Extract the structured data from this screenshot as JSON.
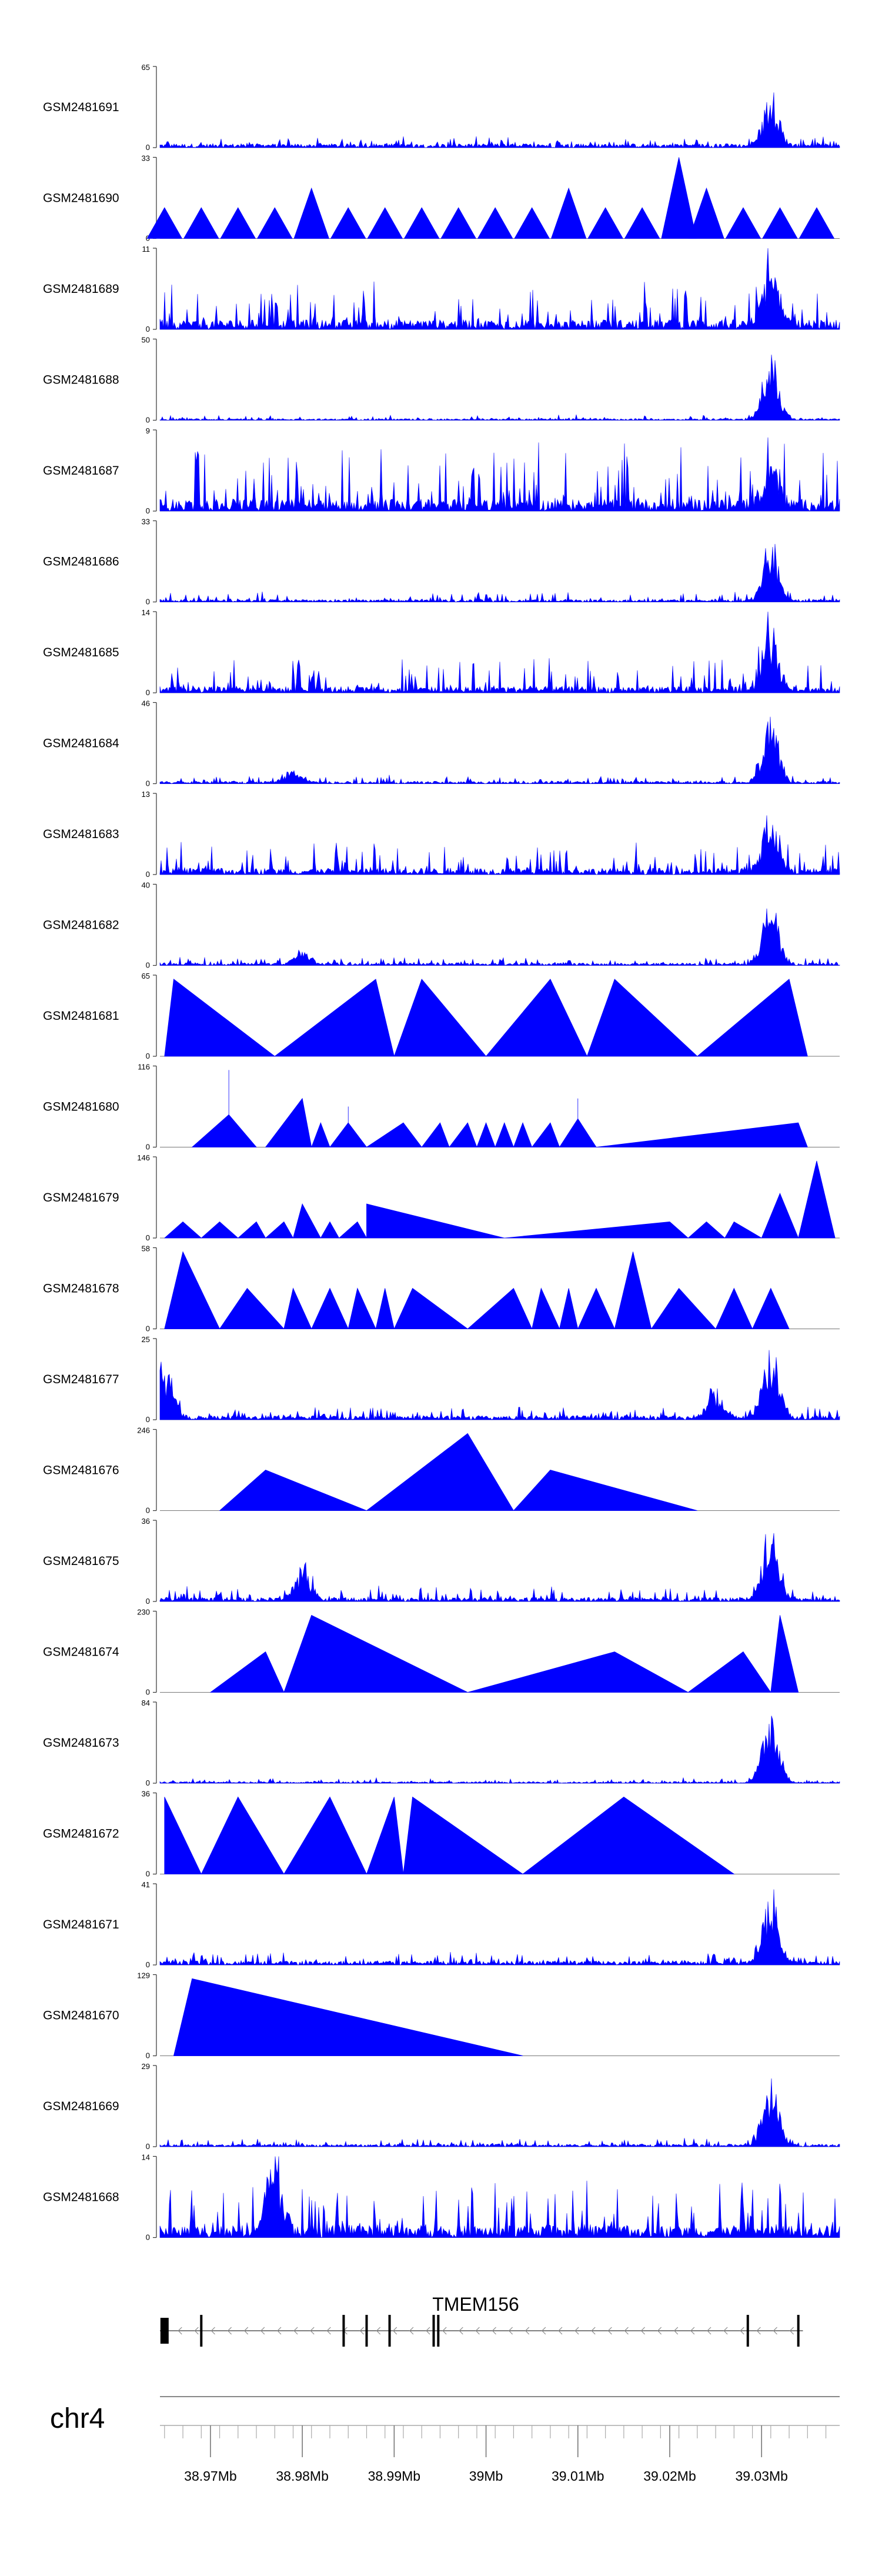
{
  "chart_data": {
    "type": "area",
    "title": "",
    "xlabel": "chr4",
    "xlim_mb": [
      38.9645,
      39.0385
    ],
    "x_ticks_mb": [
      38.97,
      38.98,
      38.99,
      39.0,
      39.01,
      39.02,
      39.03
    ],
    "x_tick_labels": [
      "38.97Mb",
      "38.98Mb",
      "38.99Mb",
      "39Mb",
      "39.01Mb",
      "39.02Mb",
      "39.03Mb"
    ],
    "gene": {
      "name": "TMEM156",
      "strand": "-",
      "start_mb": 38.9645,
      "end_mb": 39.0345,
      "exons_mb": [
        38.965,
        38.969,
        38.9845,
        38.987,
        38.9895,
        38.9943,
        38.9948,
        39.0285,
        39.034
      ]
    },
    "tracks": [
      {
        "name": "GSM2481691",
        "ymax": 65,
        "style": "noise",
        "base": 0.05,
        "var": 0.1,
        "peaks": [
          [
            39.031,
            0.7
          ]
        ]
      },
      {
        "name": "GSM2481690",
        "ymax": 33,
        "style": "spiky",
        "spikes": [
          [
            38.965,
            0.38
          ],
          [
            38.969,
            0.38
          ],
          [
            38.973,
            0.38
          ],
          [
            38.977,
            0.38
          ],
          [
            38.981,
            0.62
          ],
          [
            38.985,
            0.38
          ],
          [
            38.989,
            0.38
          ],
          [
            38.993,
            0.38
          ],
          [
            38.997,
            0.38
          ],
          [
            39.001,
            0.38
          ],
          [
            39.005,
            0.38
          ],
          [
            39.009,
            0.62
          ],
          [
            39.013,
            0.38
          ],
          [
            39.017,
            0.38
          ],
          [
            39.021,
            1.0
          ],
          [
            39.024,
            0.62
          ],
          [
            39.028,
            0.38
          ],
          [
            39.032,
            0.38
          ],
          [
            39.036,
            0.38
          ]
        ]
      },
      {
        "name": "GSM2481689",
        "ymax": 11,
        "style": "noise",
        "base": 0.12,
        "var": 0.5,
        "peaks": [
          [
            39.031,
            0.8
          ]
        ]
      },
      {
        "name": "GSM2481688",
        "ymax": 50,
        "style": "noise",
        "base": 0.02,
        "var": 0.05,
        "peaks": [
          [
            39.031,
            0.9
          ]
        ]
      },
      {
        "name": "GSM2481687",
        "ymax": 9,
        "style": "noise",
        "base": 0.15,
        "var": 0.7,
        "peaks": [
          [
            39.031,
            0.6
          ]
        ]
      },
      {
        "name": "GSM2481686",
        "ymax": 33,
        "style": "noise",
        "base": 0.03,
        "var": 0.1,
        "peaks": [
          [
            39.031,
            0.85
          ]
        ]
      },
      {
        "name": "GSM2481685",
        "ymax": 14,
        "style": "noise",
        "base": 0.08,
        "var": 0.4,
        "peaks": [
          [
            39.031,
            0.8
          ]
        ]
      },
      {
        "name": "GSM2481684",
        "ymax": 46,
        "style": "noise",
        "base": 0.03,
        "var": 0.08,
        "peaks": [
          [
            38.979,
            0.2
          ],
          [
            39.031,
            0.9
          ]
        ]
      },
      {
        "name": "GSM2481683",
        "ymax": 13,
        "style": "noise",
        "base": 0.08,
        "var": 0.35,
        "peaks": [
          [
            39.031,
            0.8
          ]
        ]
      },
      {
        "name": "GSM2481682",
        "ymax": 40,
        "style": "noise",
        "base": 0.03,
        "var": 0.08,
        "peaks": [
          [
            38.98,
            0.2
          ],
          [
            39.031,
            0.85
          ]
        ]
      },
      {
        "name": "GSM2481681",
        "ymax": 65,
        "style": "tri",
        "tris": [
          [
            38.965,
            38.966,
            38.977,
            0.95
          ],
          [
            38.977,
            38.988,
            38.99,
            0.95
          ],
          [
            38.99,
            38.993,
            39.0,
            0.95
          ],
          [
            39.0,
            39.007,
            39.011,
            0.95
          ],
          [
            39.011,
            39.014,
            39.023,
            0.95
          ],
          [
            39.023,
            39.033,
            39.035,
            0.95
          ]
        ]
      },
      {
        "name": "GSM2481680",
        "ymax": 116,
        "style": "tri",
        "tris": [
          [
            38.968,
            38.972,
            38.975,
            0.4
          ],
          [
            38.972,
            38.972,
            38.972,
            0.95
          ],
          [
            38.976,
            38.98,
            38.981,
            0.6
          ],
          [
            38.981,
            38.982,
            38.983,
            0.3
          ],
          [
            38.983,
            38.985,
            38.987,
            0.3
          ],
          [
            38.985,
            38.985,
            38.985,
            0.5
          ],
          [
            38.987,
            38.991,
            38.993,
            0.3
          ],
          [
            38.993,
            38.995,
            38.996,
            0.3
          ],
          [
            38.996,
            38.998,
            38.999,
            0.3
          ],
          [
            38.999,
            39.0,
            39.001,
            0.3
          ],
          [
            39.001,
            39.002,
            39.003,
            0.3
          ],
          [
            39.003,
            39.004,
            39.005,
            0.3
          ],
          [
            39.005,
            39.007,
            39.008,
            0.3
          ],
          [
            39.008,
            39.01,
            39.012,
            0.35
          ],
          [
            39.01,
            39.01,
            39.01,
            0.6
          ],
          [
            39.012,
            39.034,
            39.035,
            0.3
          ]
        ]
      },
      {
        "name": "GSM2481679",
        "ymax": 146,
        "style": "tri",
        "tris": [
          [
            38.965,
            38.967,
            38.969,
            0.2
          ],
          [
            38.969,
            38.971,
            38.973,
            0.2
          ],
          [
            38.973,
            38.975,
            38.976,
            0.2
          ],
          [
            38.976,
            38.978,
            38.979,
            0.2
          ],
          [
            38.979,
            38.98,
            38.982,
            0.42
          ],
          [
            38.982,
            38.983,
            38.984,
            0.2
          ],
          [
            38.984,
            38.986,
            38.987,
            0.2
          ],
          [
            38.987,
            38.987,
            39.002,
            0.42
          ],
          [
            39.002,
            39.02,
            39.022,
            0.2
          ],
          [
            39.022,
            39.024,
            39.026,
            0.2
          ],
          [
            39.026,
            39.027,
            39.03,
            0.2
          ],
          [
            39.03,
            39.032,
            39.034,
            0.55
          ],
          [
            39.034,
            39.036,
            39.038,
            0.95
          ]
        ]
      },
      {
        "name": "GSM2481678",
        "ymax": 58,
        "style": "tri",
        "tris": [
          [
            38.965,
            38.967,
            38.971,
            0.95
          ],
          [
            38.971,
            38.974,
            38.978,
            0.5
          ],
          [
            38.978,
            38.979,
            38.981,
            0.5
          ],
          [
            38.981,
            38.983,
            38.985,
            0.5
          ],
          [
            38.985,
            38.986,
            38.988,
            0.5
          ],
          [
            38.988,
            38.989,
            38.99,
            0.5
          ],
          [
            38.99,
            38.992,
            38.998,
            0.5
          ],
          [
            38.998,
            39.003,
            39.005,
            0.5
          ],
          [
            39.005,
            39.006,
            39.008,
            0.5
          ],
          [
            39.008,
            39.009,
            39.01,
            0.5
          ],
          [
            39.01,
            39.012,
            39.014,
            0.5
          ],
          [
            39.014,
            39.016,
            39.018,
            0.95
          ],
          [
            39.018,
            39.021,
            39.025,
            0.5
          ],
          [
            39.025,
            39.027,
            39.029,
            0.5
          ],
          [
            39.029,
            39.031,
            39.033,
            0.5
          ]
        ]
      },
      {
        "name": "GSM2481677",
        "ymax": 25,
        "style": "noise",
        "base": 0.05,
        "var": 0.12,
        "peaks": [
          [
            38.965,
            0.75
          ],
          [
            39.025,
            0.35
          ],
          [
            39.031,
            0.95
          ]
        ]
      },
      {
        "name": "GSM2481676",
        "ymax": 246,
        "style": "tri",
        "tris": [
          [
            38.971,
            38.976,
            38.987,
            0.5
          ],
          [
            38.987,
            38.998,
            39.003,
            0.95
          ],
          [
            39.003,
            39.007,
            39.023,
            0.5
          ]
        ]
      },
      {
        "name": "GSM2481675",
        "ymax": 36,
        "style": "noise",
        "base": 0.05,
        "var": 0.15,
        "peaks": [
          [
            38.98,
            0.45
          ],
          [
            39.031,
            0.9
          ]
        ]
      },
      {
        "name": "GSM2481674",
        "ymax": 230,
        "style": "tri",
        "tris": [
          [
            38.97,
            38.976,
            38.978,
            0.5
          ],
          [
            38.978,
            38.981,
            38.998,
            0.95
          ],
          [
            38.998,
            39.014,
            39.022,
            0.5
          ],
          [
            39.022,
            39.028,
            39.031,
            0.5
          ],
          [
            39.031,
            39.032,
            39.034,
            0.95
          ]
        ]
      },
      {
        "name": "GSM2481673",
        "ymax": 84,
        "style": "noise",
        "base": 0.02,
        "var": 0.05,
        "peaks": [
          [
            39.031,
            0.95
          ]
        ]
      },
      {
        "name": "GSM2481672",
        "ymax": 36,
        "style": "tri",
        "tris": [
          [
            38.965,
            38.965,
            38.969,
            0.95
          ],
          [
            38.969,
            38.973,
            38.978,
            0.95
          ],
          [
            38.978,
            38.983,
            38.987,
            0.95
          ],
          [
            38.987,
            38.99,
            38.991,
            0.95
          ],
          [
            38.991,
            38.992,
            39.004,
            0.95
          ],
          [
            39.004,
            39.015,
            39.027,
            0.95
          ]
        ]
      },
      {
        "name": "GSM2481671",
        "ymax": 41,
        "style": "noise",
        "base": 0.05,
        "var": 0.12,
        "peaks": [
          [
            39.031,
            0.9
          ]
        ]
      },
      {
        "name": "GSM2481670",
        "ymax": 129,
        "style": "tri",
        "tris": [
          [
            38.966,
            38.968,
            39.004,
            0.95
          ]
        ]
      },
      {
        "name": "GSM2481669",
        "ymax": 29,
        "style": "noise",
        "base": 0.03,
        "var": 0.08,
        "peaks": [
          [
            39.031,
            0.95
          ]
        ]
      },
      {
        "name": "GSM2481668",
        "ymax": 14,
        "style": "noise",
        "base": 0.15,
        "var": 0.6,
        "peaks": [
          [
            38.977,
            0.9
          ]
        ]
      }
    ]
  }
}
